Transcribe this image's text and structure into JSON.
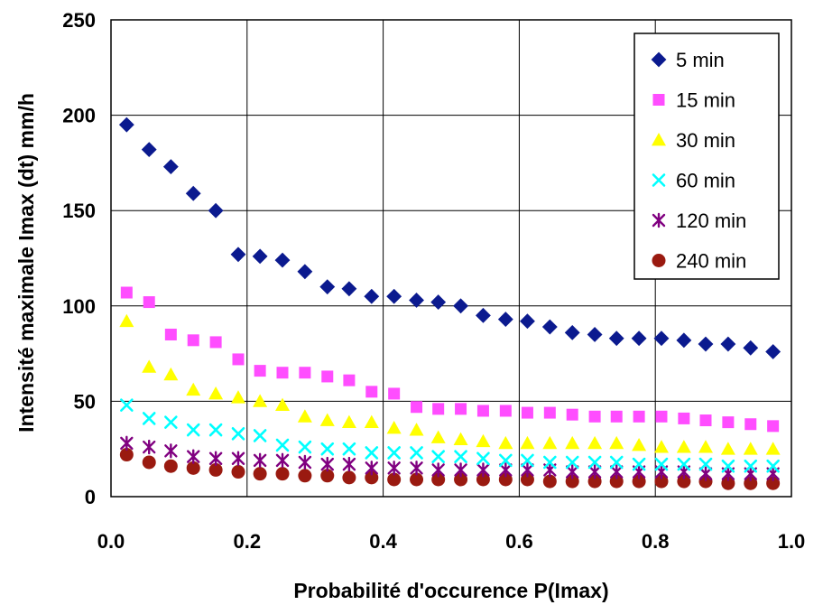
{
  "chart_data": {
    "type": "scatter",
    "title": "",
    "xlabel": "Probabilité d'occurence P(Imax)",
    "ylabel": "Intensité maximale Imax (dt) mm/h",
    "xlim": [
      0.0,
      1.0
    ],
    "ylim": [
      0,
      250
    ],
    "x_ticks": [
      "0.0",
      "0.2",
      "0.4",
      "0.6",
      "0.8",
      "1.0"
    ],
    "y_ticks": [
      "0",
      "50",
      "100",
      "150",
      "200",
      "250"
    ],
    "grid": true,
    "legend_position": "top-right",
    "x": [
      0.023,
      0.056,
      0.088,
      0.121,
      0.154,
      0.187,
      0.219,
      0.252,
      0.285,
      0.318,
      0.35,
      0.383,
      0.416,
      0.449,
      0.481,
      0.514,
      0.547,
      0.58,
      0.612,
      0.645,
      0.678,
      0.711,
      0.743,
      0.776,
      0.809,
      0.842,
      0.874,
      0.907,
      0.94,
      0.973
    ],
    "series": [
      {
        "name": "5 min",
        "marker": "diamond",
        "color": "#0b1a8f",
        "values": [
          195,
          182,
          173,
          159,
          150,
          127,
          126,
          124,
          118,
          110,
          109,
          105,
          105,
          103,
          102,
          100,
          95,
          93,
          92,
          89,
          86,
          85,
          83,
          83,
          83,
          82,
          80,
          80,
          78,
          76
        ]
      },
      {
        "name": "15 min",
        "marker": "square",
        "color": "#ff4dff",
        "values": [
          107,
          102,
          85,
          82,
          81,
          72,
          66,
          65,
          65,
          63,
          61,
          55,
          54,
          47,
          46,
          46,
          45,
          45,
          44,
          44,
          43,
          42,
          42,
          42,
          42,
          41,
          40,
          39,
          38,
          37
        ]
      },
      {
        "name": "30 min",
        "marker": "triangle",
        "color": "#ffff00",
        "values": [
          92,
          68,
          64,
          56,
          54,
          52,
          50,
          48,
          42,
          40,
          39,
          39,
          36,
          35,
          31,
          30,
          29,
          28,
          28,
          28,
          28,
          28,
          28,
          27,
          26,
          26,
          26,
          25,
          25,
          25
        ]
      },
      {
        "name": "60 min",
        "marker": "x",
        "color": "#00ffff",
        "values": [
          48,
          41,
          39,
          35,
          35,
          33,
          32,
          27,
          26,
          25,
          25,
          23,
          23,
          23,
          21,
          21,
          20,
          19,
          19,
          18,
          18,
          18,
          18,
          17,
          17,
          17,
          17,
          16,
          16,
          16
        ]
      },
      {
        "name": "120 min",
        "marker": "asterisk",
        "color": "#800080",
        "values": [
          28,
          26,
          24,
          21,
          20,
          20,
          19,
          19,
          18,
          17,
          17,
          15,
          15,
          15,
          14,
          14,
          14,
          14,
          14,
          14,
          13,
          13,
          13,
          13,
          13,
          13,
          12,
          12,
          12,
          12
        ]
      },
      {
        "name": "240 min",
        "marker": "circle",
        "color": "#9a1a10",
        "values": [
          22,
          18,
          16,
          15,
          14,
          13,
          12,
          12,
          11,
          11,
          10,
          10,
          9,
          9,
          9,
          9,
          9,
          9,
          9,
          8,
          8,
          8,
          8,
          8,
          8,
          8,
          8,
          7,
          7,
          7
        ]
      }
    ]
  }
}
